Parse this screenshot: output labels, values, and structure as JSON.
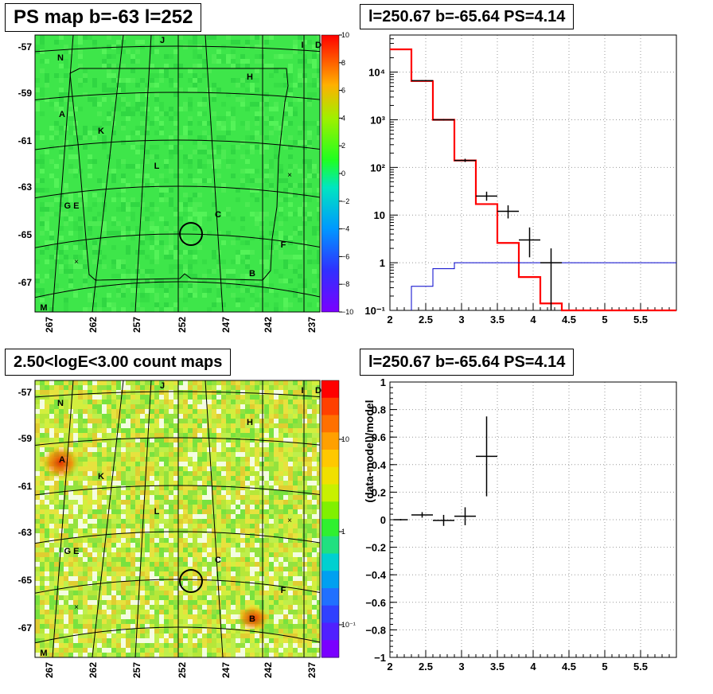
{
  "panels": {
    "tl_title": "PS map b=-63 l=252",
    "tr_title": "l=250.67 b=-65.64 PS=4.14",
    "bl_title": "2.50<logE<3.00 count maps",
    "br_title": "l=250.67 b=-65.64 PS=4.14"
  },
  "maps": {
    "lat_labels": [
      "-57",
      "-59",
      "-61",
      "-63",
      "-65",
      "-67"
    ],
    "lon_labels": [
      "267",
      "262",
      "257",
      "252",
      "247",
      "242",
      "237"
    ],
    "sources": [
      "N",
      "J",
      "I",
      "D",
      "H",
      "A",
      "K",
      "L",
      "G E",
      "C",
      "F",
      "B",
      "M"
    ],
    "ps_colorbar_labels": [
      "10",
      "8",
      "6",
      "4",
      "2",
      "0",
      "−2",
      "−4",
      "−6",
      "−8",
      "−10"
    ],
    "count_colorbar_labels": [
      "10",
      "1",
      "10⁻¹"
    ]
  },
  "chart_data": [
    {
      "type": "line",
      "panel": "spectrum",
      "title": "l=250.67 b=-65.64 PS=4.14",
      "xlabel": "",
      "ylabel": "",
      "xlim": [
        2,
        6
      ],
      "ylim": [
        0.1,
        60000
      ],
      "yscale": "log",
      "grid": true,
      "x_ticks": [
        "2",
        "2.5",
        "3",
        "3.5",
        "4",
        "4.5",
        "5",
        "5.5"
      ],
      "y_ticks": [
        "10⁻¹",
        "1",
        "10",
        "10²",
        "10³",
        "10⁴"
      ],
      "bin_edges": [
        2.0,
        2.3,
        2.6,
        2.9,
        3.2,
        3.5,
        3.8,
        4.1,
        4.4,
        6.0
      ],
      "series": [
        {
          "color": "#ff0000",
          "values": [
            30000,
            6500,
            1000,
            140,
            17,
            2.6,
            0.5,
            0.14,
            0.1
          ]
        },
        {
          "color": "#0000cc",
          "values": [
            0.1,
            0.32,
            0.75,
            1.0,
            1.0,
            1.0,
            1.0,
            1.0,
            1.0
          ]
        }
      ],
      "data_points": [
        {
          "x": 2.45,
          "xerr": 0.15,
          "y": 6600,
          "ylo": 6450,
          "yhi": 6750
        },
        {
          "x": 2.75,
          "xerr": 0.15,
          "y": 1000,
          "ylo": 970,
          "yhi": 1030
        },
        {
          "x": 3.05,
          "xerr": 0.15,
          "y": 140,
          "ylo": 130,
          "yhi": 152
        },
        {
          "x": 3.35,
          "xerr": 0.15,
          "y": 25,
          "ylo": 20,
          "yhi": 31
        },
        {
          "x": 3.65,
          "xerr": 0.15,
          "y": 12,
          "ylo": 8.5,
          "yhi": 16
        },
        {
          "x": 3.95,
          "xerr": 0.15,
          "y": 3,
          "ylo": 1.3,
          "yhi": 5.5
        },
        {
          "x": 4.25,
          "xerr": 0.15,
          "y": 1,
          "ylo": 0.1,
          "yhi": 2
        }
      ]
    },
    {
      "type": "scatter",
      "panel": "residuals",
      "title": "l=250.67 b=-65.64 PS=4.14",
      "xlabel": "",
      "ylabel": "(data-model)/model",
      "xlim": [
        2,
        6
      ],
      "ylim": [
        -1,
        1
      ],
      "grid": true,
      "x_ticks": [
        "2",
        "2.5",
        "3",
        "3.5",
        "4",
        "4.5",
        "5",
        "5.5"
      ],
      "y_ticks": [
        "−1",
        "−0.8",
        "−0.6",
        "−0.4",
        "−0.2",
        "0",
        "0.2",
        "0.4",
        "0.6",
        "0.8",
        "1"
      ],
      "points": [
        {
          "x": 2.15,
          "xerr": 0.1,
          "y": 0.0,
          "yerr": 0.005
        },
        {
          "x": 2.45,
          "xerr": 0.15,
          "y": 0.035,
          "yerr": 0.02
        },
        {
          "x": 2.75,
          "xerr": 0.15,
          "y": -0.005,
          "yerr": 0.04
        },
        {
          "x": 3.05,
          "xerr": 0.15,
          "y": 0.025,
          "yerr": 0.065
        },
        {
          "x": 3.35,
          "xerr": 0.15,
          "y": 0.46,
          "yerr": 0.29
        }
      ]
    }
  ]
}
